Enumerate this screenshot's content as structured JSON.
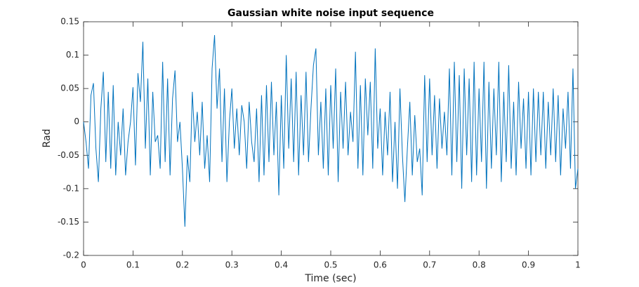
{
  "chart_data": {
    "type": "line",
    "title": "Gaussian white noise input sequence",
    "x_label": "Time (sec)",
    "y_label": "Rad",
    "x": [
      0,
      0.005,
      0.01,
      0.015,
      0.02,
      0.025,
      0.03,
      0.035,
      0.04,
      0.045,
      0.05,
      0.055,
      0.06,
      0.065,
      0.07,
      0.075,
      0.08,
      0.085,
      0.09,
      0.095,
      0.1,
      0.105,
      0.11,
      0.115,
      0.12,
      0.125,
      0.13,
      0.135,
      0.14,
      0.145,
      0.15,
      0.155,
      0.16,
      0.165,
      0.17,
      0.175,
      0.18,
      0.185,
      0.19,
      0.195,
      0.2,
      0.205,
      0.21,
      0.215,
      0.22,
      0.225,
      0.23,
      0.235,
      0.24,
      0.245,
      0.25,
      0.255,
      0.26,
      0.265,
      0.27,
      0.275,
      0.28,
      0.285,
      0.29,
      0.295,
      0.3,
      0.305,
      0.31,
      0.315,
      0.32,
      0.325,
      0.33,
      0.335,
      0.34,
      0.345,
      0.35,
      0.355,
      0.36,
      0.365,
      0.37,
      0.375,
      0.38,
      0.385,
      0.39,
      0.395,
      0.4,
      0.405,
      0.41,
      0.415,
      0.42,
      0.425,
      0.43,
      0.435,
      0.44,
      0.445,
      0.45,
      0.455,
      0.46,
      0.465,
      0.47,
      0.475,
      0.48,
      0.485,
      0.49,
      0.495,
      0.5,
      0.505,
      0.51,
      0.515,
      0.52,
      0.525,
      0.53,
      0.535,
      0.54,
      0.545,
      0.55,
      0.555,
      0.56,
      0.565,
      0.57,
      0.575,
      0.58,
      0.585,
      0.59,
      0.595,
      0.6,
      0.605,
      0.61,
      0.615,
      0.62,
      0.625,
      0.63,
      0.635,
      0.64,
      0.645,
      0.65,
      0.655,
      0.66,
      0.665,
      0.67,
      0.675,
      0.68,
      0.685,
      0.69,
      0.695,
      0.7,
      0.705,
      0.71,
      0.715,
      0.72,
      0.725,
      0.73,
      0.735,
      0.74,
      0.745,
      0.75,
      0.755,
      0.76,
      0.765,
      0.77,
      0.775,
      0.78,
      0.785,
      0.79,
      0.795,
      0.8,
      0.805,
      0.81,
      0.815,
      0.82,
      0.825,
      0.83,
      0.835,
      0.84,
      0.845,
      0.85,
      0.855,
      0.86,
      0.865,
      0.87,
      0.875,
      0.88,
      0.885,
      0.89,
      0.895,
      0.9,
      0.905,
      0.91,
      0.915,
      0.92,
      0.925,
      0.93,
      0.935,
      0.94,
      0.945,
      0.95,
      0.955,
      0.96,
      0.965,
      0.97,
      0.975,
      0.98,
      0.985,
      0.99,
      0.995,
      1
    ],
    "series": [
      {
        "color": "#0072bd",
        "values": [
          0,
          -0.03,
          -0.07,
          0.04,
          0.058,
          -0.04,
          -0.09,
          0.02,
          0.075,
          -0.06,
          0.045,
          -0.07,
          0.055,
          -0.08,
          0,
          -0.05,
          0.02,
          -0.08,
          -0.03,
          0,
          0.052,
          -0.065,
          0.073,
          0.03,
          0.12,
          -0.04,
          0.065,
          -0.08,
          0.045,
          -0.03,
          -0.02,
          -0.07,
          0.09,
          -0.06,
          0.065,
          -0.08,
          0.035,
          0.077,
          -0.03,
          0,
          -0.07,
          -0.157,
          -0.05,
          -0.09,
          0.045,
          -0.03,
          0.015,
          -0.05,
          0.03,
          -0.07,
          -0.02,
          -0.09,
          0.08,
          0.13,
          0.02,
          0.08,
          -0.06,
          0.05,
          -0.09,
          0,
          0.05,
          -0.04,
          0.02,
          -0.05,
          0.025,
          0,
          -0.07,
          0.03,
          -0.03,
          -0.06,
          0.02,
          -0.09,
          0.04,
          -0.08,
          0.055,
          -0.06,
          0.06,
          -0.05,
          0.03,
          -0.11,
          0.04,
          -0.07,
          0.1,
          -0.04,
          0.065,
          -0.06,
          0.075,
          -0.08,
          0.04,
          -0.05,
          0.075,
          -0.06,
          0.02,
          0.085,
          0.11,
          -0.05,
          0.03,
          -0.07,
          0.05,
          -0.08,
          0.055,
          -0.04,
          0.08,
          -0.09,
          0.045,
          -0.04,
          0.06,
          -0.05,
          0.015,
          -0.03,
          0.105,
          -0.07,
          0.055,
          -0.08,
          0.065,
          -0.02,
          0.06,
          -0.07,
          0.11,
          -0.04,
          0.02,
          -0.08,
          0.015,
          -0.05,
          0.045,
          -0.09,
          0,
          -0.1,
          0.05,
          -0.05,
          -0.12,
          -0.04,
          0.03,
          -0.08,
          0.01,
          -0.06,
          -0.04,
          -0.11,
          0.07,
          -0.06,
          0.065,
          -0.05,
          0.04,
          -0.07,
          0.035,
          -0.04,
          0.015,
          -0.05,
          0.08,
          -0.08,
          0.09,
          -0.06,
          0.07,
          -0.1,
          0.08,
          -0.05,
          0.065,
          -0.09,
          0.09,
          -0.08,
          0.05,
          -0.06,
          0.09,
          -0.1,
          0.06,
          -0.07,
          0.05,
          -0.05,
          0.09,
          -0.09,
          0.045,
          -0.06,
          0.085,
          -0.07,
          0.03,
          -0.08,
          0.06,
          -0.04,
          0.035,
          -0.07,
          0.045,
          -0.08,
          0.05,
          -0.06,
          0.045,
          -0.05,
          0.045,
          -0.07,
          0.03,
          -0.05,
          0.05,
          -0.06,
          0.04,
          -0.08,
          0.02,
          -0.04,
          0.045,
          -0.07,
          0.08,
          -0.1,
          -0.07
        ]
      }
    ],
    "xlim": [
      0,
      1
    ],
    "xticks": [
      0,
      0.1,
      0.2,
      0.3,
      0.4,
      0.5,
      0.6,
      0.7,
      0.8,
      0.9,
      1
    ],
    "ylim": [
      -0.2,
      0.15
    ],
    "yticks": [
      -0.2,
      -0.15,
      -0.1,
      -0.05,
      0,
      0.05,
      0.1,
      0.15
    ]
  }
}
